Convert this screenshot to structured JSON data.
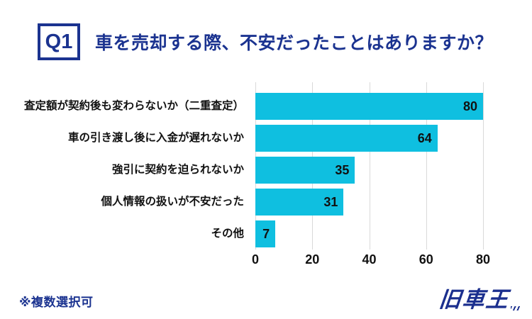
{
  "header": {
    "q_label": "Q1",
    "title": "車を売却する際、不安だったことはありますか？"
  },
  "chart_data": {
    "type": "bar",
    "orientation": "horizontal",
    "categories": [
      "査定額が契約後も変わらないか（二重査定）",
      "車の引き渡し後に入金が遅れないか",
      "強引に契約を迫られないか",
      "個人情報の扱いが不安だった",
      "その他"
    ],
    "values": [
      80,
      64,
      35,
      31,
      7
    ],
    "x_ticks": [
      "0",
      "20",
      "40",
      "60",
      "80"
    ],
    "xlim": [
      0,
      80
    ],
    "grid": true,
    "legend": false,
    "value_labels": "inside-end",
    "title": "",
    "xlabel": "",
    "ylabel": ""
  },
  "footer": {
    "note": "※複数選択可"
  },
  "logo": {
    "text": "旧車王"
  },
  "colors": {
    "brand_navy": "#1b3390",
    "bar_cyan": "#0fbfe0",
    "gridline_gray": "#d9d9d9",
    "label_black": "#111111"
  }
}
